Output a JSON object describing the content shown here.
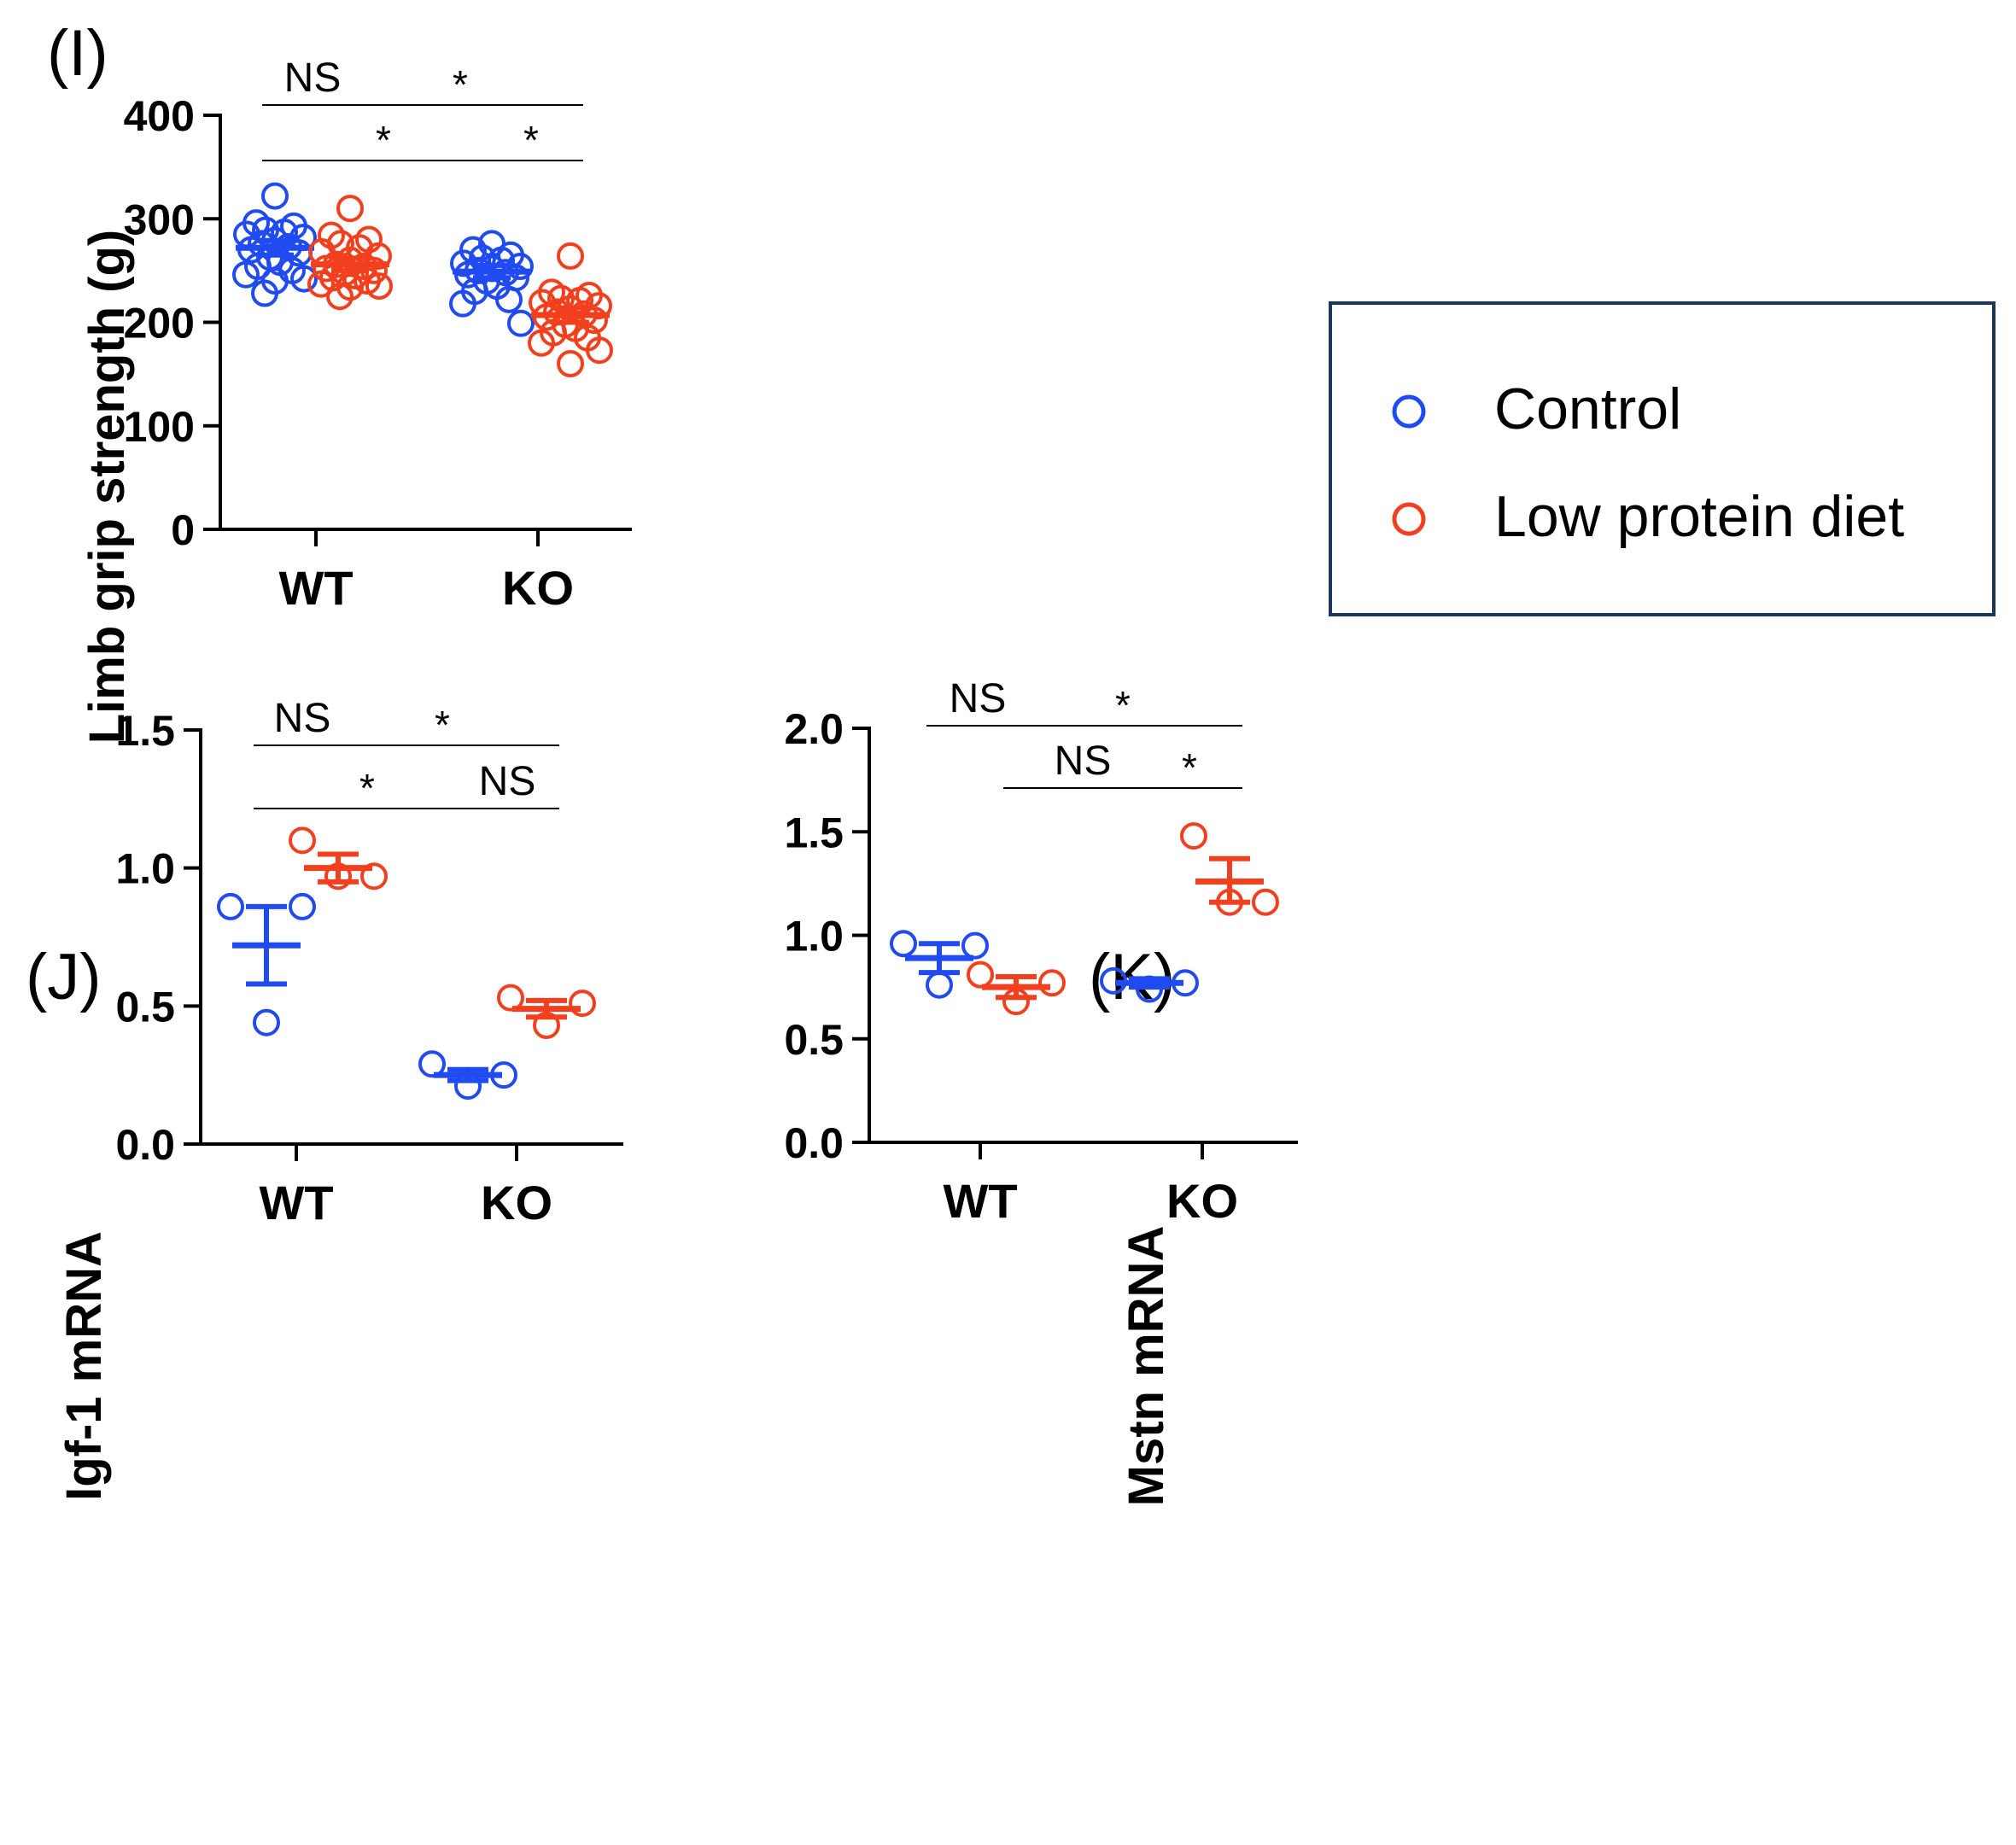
{
  "colors": {
    "control": "#1F4BF0",
    "low_protein": "#F2401F",
    "axis": "#000000",
    "legend_border": "#1B365D"
  },
  "legend": {
    "items": [
      {
        "label": "Control",
        "color": "#1F4BF0"
      },
      {
        "label": "Low protein diet",
        "color": "#F2401F"
      }
    ]
  },
  "chart_data": [
    {
      "id": "I",
      "panel_label": "(I)",
      "type": "scatter",
      "ylabel": "Limb grip strength  (g)",
      "ylim": [
        0,
        400
      ],
      "yticks": [
        0,
        100,
        200,
        300,
        400
      ],
      "ytick_labels": [
        "0",
        "100",
        "200",
        "300",
        "400"
      ],
      "categories": [
        "WT",
        "KO"
      ],
      "series": [
        {
          "name": "Control",
          "groups": [
            {
              "category": "WT",
              "mean": 272,
              "sem_low": 265,
              "sem_high": 279,
              "points": [
                322,
                296,
                293,
                289,
                287,
                285,
                282,
                279,
                276,
                273,
                270,
                267,
                263,
                258,
                254,
                250,
                246,
                242,
                240,
                228
              ]
            },
            {
              "category": "KO",
              "mean": 249,
              "sem_low": 243,
              "sem_high": 255,
              "points": [
                276,
                270,
                265,
                262,
                260,
                257,
                254,
                252,
                250,
                248,
                246,
                243,
                240,
                235,
                230,
                222,
                218,
                199
              ]
            }
          ]
        },
        {
          "name": "Low protein diet",
          "groups": [
            {
              "category": "WT",
              "mean": 256,
              "sem_low": 250,
              "sem_high": 262,
              "points": [
                310,
                284,
                280,
                276,
                272,
                268,
                264,
                260,
                256,
                254,
                252,
                250,
                248,
                245,
                243,
                240,
                237,
                235,
                234,
                225
              ]
            },
            {
              "category": "KO",
              "mean": 207,
              "sem_low": 200,
              "sem_high": 214,
              "points": [
                264,
                229,
                226,
                223,
                221,
                219,
                216,
                213,
                210,
                208,
                205,
                202,
                198,
                194,
                190,
                185,
                180,
                173,
                160
              ]
            }
          ]
        }
      ],
      "annotations": [
        {
          "label": "NS",
          "level": 1,
          "from": "WT-Control",
          "to": "WT-Low protein diet"
        },
        {
          "label": "*",
          "level": 1,
          "from": "WT-Low protein diet",
          "to": "KO-Low protein diet"
        },
        {
          "label": "*",
          "level": 2,
          "from": "WT-Control",
          "to": "KO-Control"
        },
        {
          "label": "*",
          "level": 2,
          "from": "KO-Control",
          "to": "KO-Low protein diet"
        }
      ]
    },
    {
      "id": "J",
      "panel_label": "(J)",
      "type": "scatter",
      "ylabel": "Igf-1 mRNA",
      "ylim": [
        0,
        1.5
      ],
      "yticks": [
        0,
        0.5,
        1.0,
        1.5
      ],
      "ytick_labels": [
        "0.0",
        "0.5",
        "1.0",
        "1.5"
      ],
      "categories": [
        "WT",
        "KO"
      ],
      "series": [
        {
          "name": "Control",
          "groups": [
            {
              "category": "WT",
              "mean": 0.72,
              "sem_low": 0.58,
              "sem_high": 0.86,
              "points": [
                0.86,
                0.86,
                0.44
              ]
            },
            {
              "category": "KO",
              "mean": 0.25,
              "sem_low": 0.23,
              "sem_high": 0.27,
              "points": [
                0.29,
                0.25,
                0.21
              ]
            }
          ]
        },
        {
          "name": "Low protein diet",
          "groups": [
            {
              "category": "WT",
              "mean": 1.0,
              "sem_low": 0.95,
              "sem_high": 1.05,
              "points": [
                1.1,
                0.97,
                0.97
              ]
            },
            {
              "category": "KO",
              "mean": 0.49,
              "sem_low": 0.46,
              "sem_high": 0.52,
              "points": [
                0.53,
                0.51,
                0.43
              ]
            }
          ]
        }
      ],
      "annotations": [
        {
          "label": "NS",
          "level": 1,
          "from": "WT-Control",
          "to": "WT-Low protein diet"
        },
        {
          "label": "*",
          "level": 1,
          "from": "WT-Low protein diet",
          "to": "KO-Low protein diet"
        },
        {
          "label": "*",
          "level": 2,
          "from": "WT-Control",
          "to": "KO-Control"
        },
        {
          "label": "NS",
          "level": 2,
          "from": "KO-Control",
          "to": "KO-Low protein diet"
        }
      ]
    },
    {
      "id": "K",
      "panel_label": "(K)",
      "type": "scatter",
      "ylabel": "Mstn mRNA",
      "ylim": [
        0,
        2.0
      ],
      "yticks": [
        0,
        0.5,
        1.0,
        1.5,
        2.0
      ],
      "ytick_labels": [
        "0.0",
        "0.5",
        "1.0",
        "1.5",
        "2.0"
      ],
      "categories": [
        "WT",
        "KO"
      ],
      "series": [
        {
          "name": "Control",
          "groups": [
            {
              "category": "WT",
              "mean": 0.89,
              "sem_low": 0.82,
              "sem_high": 0.96,
              "points": [
                0.96,
                0.95,
                0.76
              ]
            },
            {
              "category": "KO",
              "mean": 0.77,
              "sem_low": 0.75,
              "sem_high": 0.79,
              "points": [
                0.78,
                0.77,
                0.74
              ]
            }
          ]
        },
        {
          "name": "Low protein diet",
          "groups": [
            {
              "category": "WT",
              "mean": 0.75,
              "sem_low": 0.7,
              "sem_high": 0.8,
              "points": [
                0.81,
                0.77,
                0.68
              ]
            },
            {
              "category": "KO",
              "mean": 1.26,
              "sem_low": 1.16,
              "sem_high": 1.37,
              "points": [
                1.48,
                1.16,
                1.16
              ]
            }
          ]
        }
      ],
      "annotations": [
        {
          "label": "NS",
          "level": 1,
          "from": "WT-Control",
          "to": "WT-Low protein diet"
        },
        {
          "label": "*",
          "level": 1,
          "from": "WT-Low protein diet",
          "to": "KO-Low protein diet"
        },
        {
          "label": "NS",
          "level": 2,
          "from": "WT-Low protein diet",
          "to": "KO-Control"
        },
        {
          "label": "*",
          "level": 2,
          "from": "KO-Control",
          "to": "KO-Low protein diet"
        }
      ]
    }
  ]
}
